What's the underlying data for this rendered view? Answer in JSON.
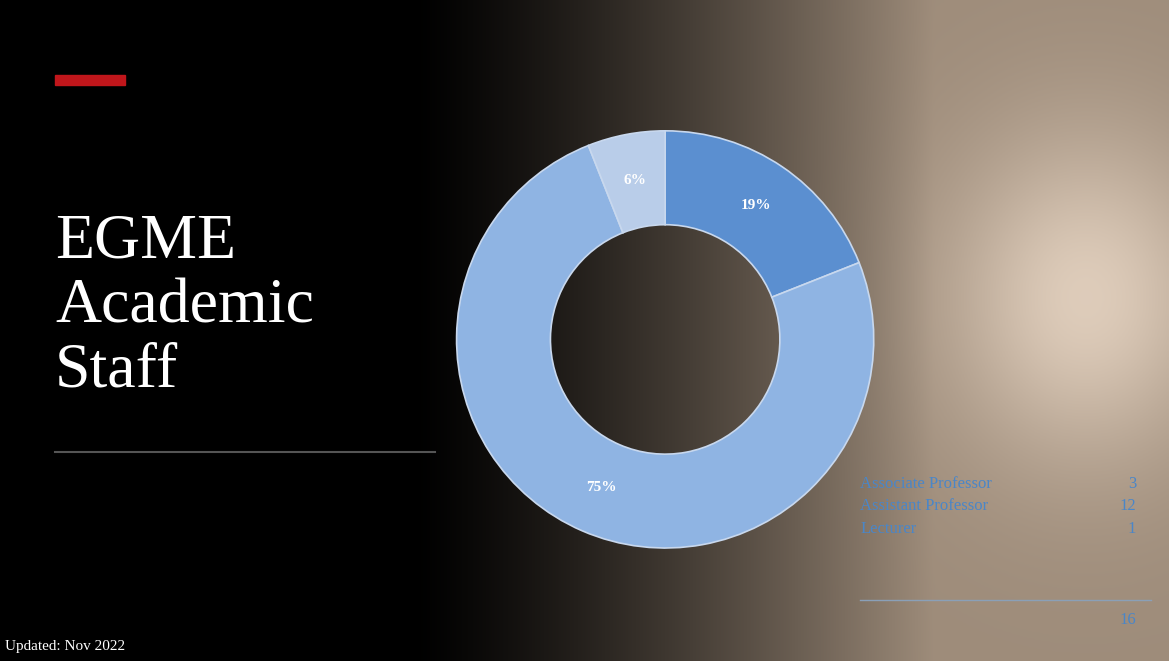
{
  "chart_data": {
    "type": "pie",
    "donut": true,
    "title": "EGME Academic Staff",
    "categories": [
      "Associate Professor",
      "Assistant Professor",
      "Lecturer"
    ],
    "values": [
      19,
      75,
      6
    ],
    "value_labels": [
      "19%",
      "75%",
      "6%"
    ],
    "data_labels": true,
    "colors": [
      "#5b8fd0",
      "#8fb4e3",
      "#b9cde9"
    ],
    "counts": [
      3,
      12,
      1
    ],
    "total": 16,
    "footnote": "Updated: Nov 2022"
  }
}
